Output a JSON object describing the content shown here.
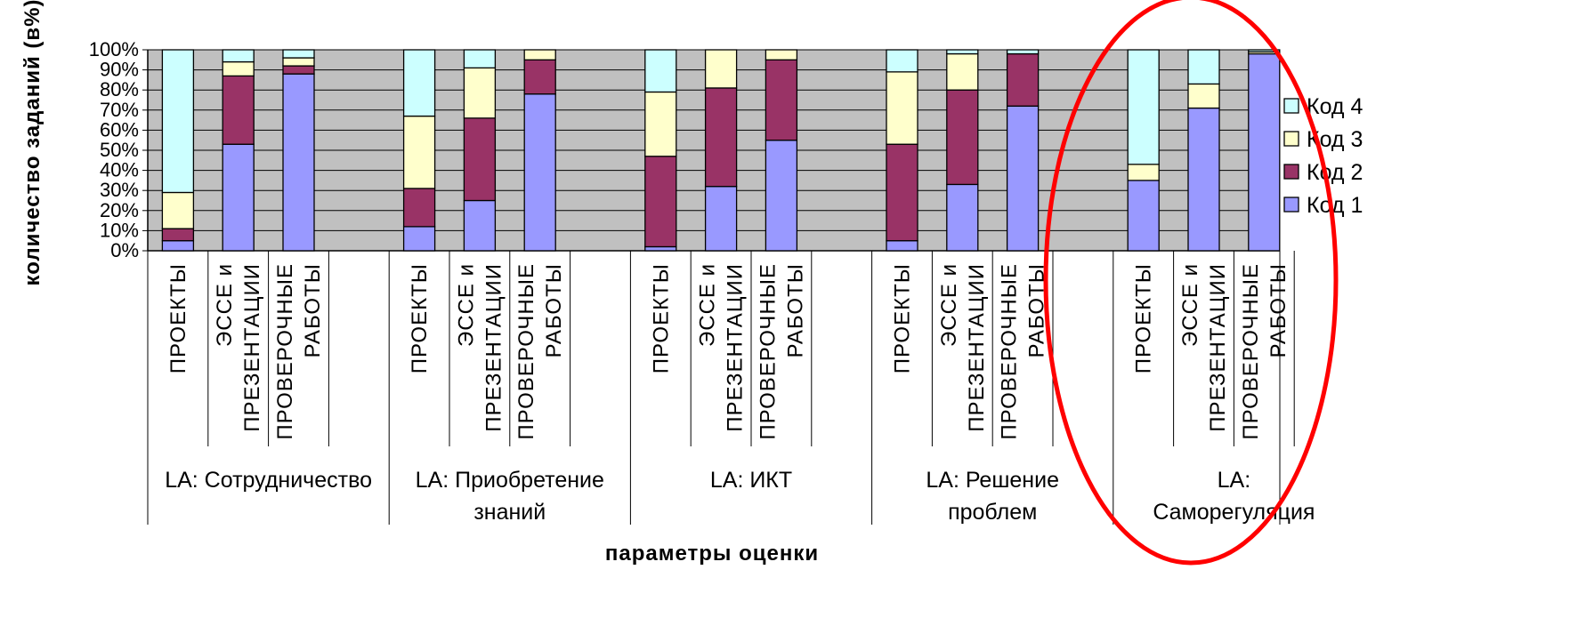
{
  "chart_data": {
    "type": "bar",
    "stacked": true,
    "percent": true,
    "xlabel": "параметры оценки",
    "ylabel": "количество заданий (в%)",
    "y_ticks": [
      "0%",
      "10%",
      "20%",
      "30%",
      "40%",
      "50%",
      "60%",
      "70%",
      "80%",
      "90%",
      "100%"
    ],
    "ylim": [
      0,
      100
    ],
    "grid": true,
    "legend_position": "right",
    "groups": [
      {
        "label": "LA: Сотрудничество",
        "lines": [
          "LA: Сотрудничество"
        ]
      },
      {
        "label": "LA: Приобретение знаний",
        "lines": [
          "LA: Приобретение",
          "знаний"
        ]
      },
      {
        "label": "LA: ИКТ",
        "lines": [
          "LA: ИКТ"
        ]
      },
      {
        "label": "LA: Решение проблем",
        "lines": [
          "LA: Решение",
          "проблем"
        ]
      },
      {
        "label": "LA: Саморегуляция",
        "lines": [
          "LA:",
          "Саморегуляция"
        ]
      }
    ],
    "categories": [
      {
        "label": "ПРОЕКТЫ",
        "lines": [
          "ПРОЕКТЫ"
        ]
      },
      {
        "label": "ЭССЕ и ПРЕЗЕНТАЦИИ",
        "lines": [
          "ЭССЕ и",
          "ПРЕЗЕНТАЦИИ"
        ]
      },
      {
        "label": "ПРОВЕРОЧНЫЕ РАБОТЫ",
        "lines": [
          "ПРОВЕРОЧНЫЕ",
          "РАБОТЫ"
        ]
      }
    ],
    "series": [
      {
        "name": "Код 1",
        "color": "#9999ff",
        "values": [
          [
            5,
            53,
            88
          ],
          [
            12,
            25,
            78
          ],
          [
            2,
            32,
            55
          ],
          [
            5,
            33,
            72
          ],
          [
            35,
            71,
            98
          ]
        ]
      },
      {
        "name": "Код 2",
        "color": "#993366",
        "values": [
          [
            6,
            34,
            4
          ],
          [
            19,
            41,
            17
          ],
          [
            45,
            49,
            40
          ],
          [
            48,
            47,
            26
          ],
          [
            0,
            0,
            0
          ]
        ]
      },
      {
        "name": "Код 3",
        "color": "#ffffcc",
        "values": [
          [
            18,
            7,
            4
          ],
          [
            36,
            25,
            5
          ],
          [
            32,
            19,
            5
          ],
          [
            36,
            18,
            0
          ],
          [
            8,
            12,
            1
          ]
        ]
      },
      {
        "name": "Код 4",
        "color": "#ccffff",
        "values": [
          [
            71,
            6,
            4
          ],
          [
            33,
            9,
            0
          ],
          [
            21,
            0,
            0
          ],
          [
            11,
            2,
            2
          ],
          [
            57,
            17,
            1
          ]
        ]
      }
    ],
    "legend_order": [
      "Код 4",
      "Код 3",
      "Код 2",
      "Код 1"
    ],
    "colors": {
      "plot_bg": "#c0c0c0",
      "annotation_ellipse": "#ff0000"
    },
    "annotation": {
      "shape": "ellipse",
      "highlights_group": "LA: Саморегуляция"
    }
  }
}
